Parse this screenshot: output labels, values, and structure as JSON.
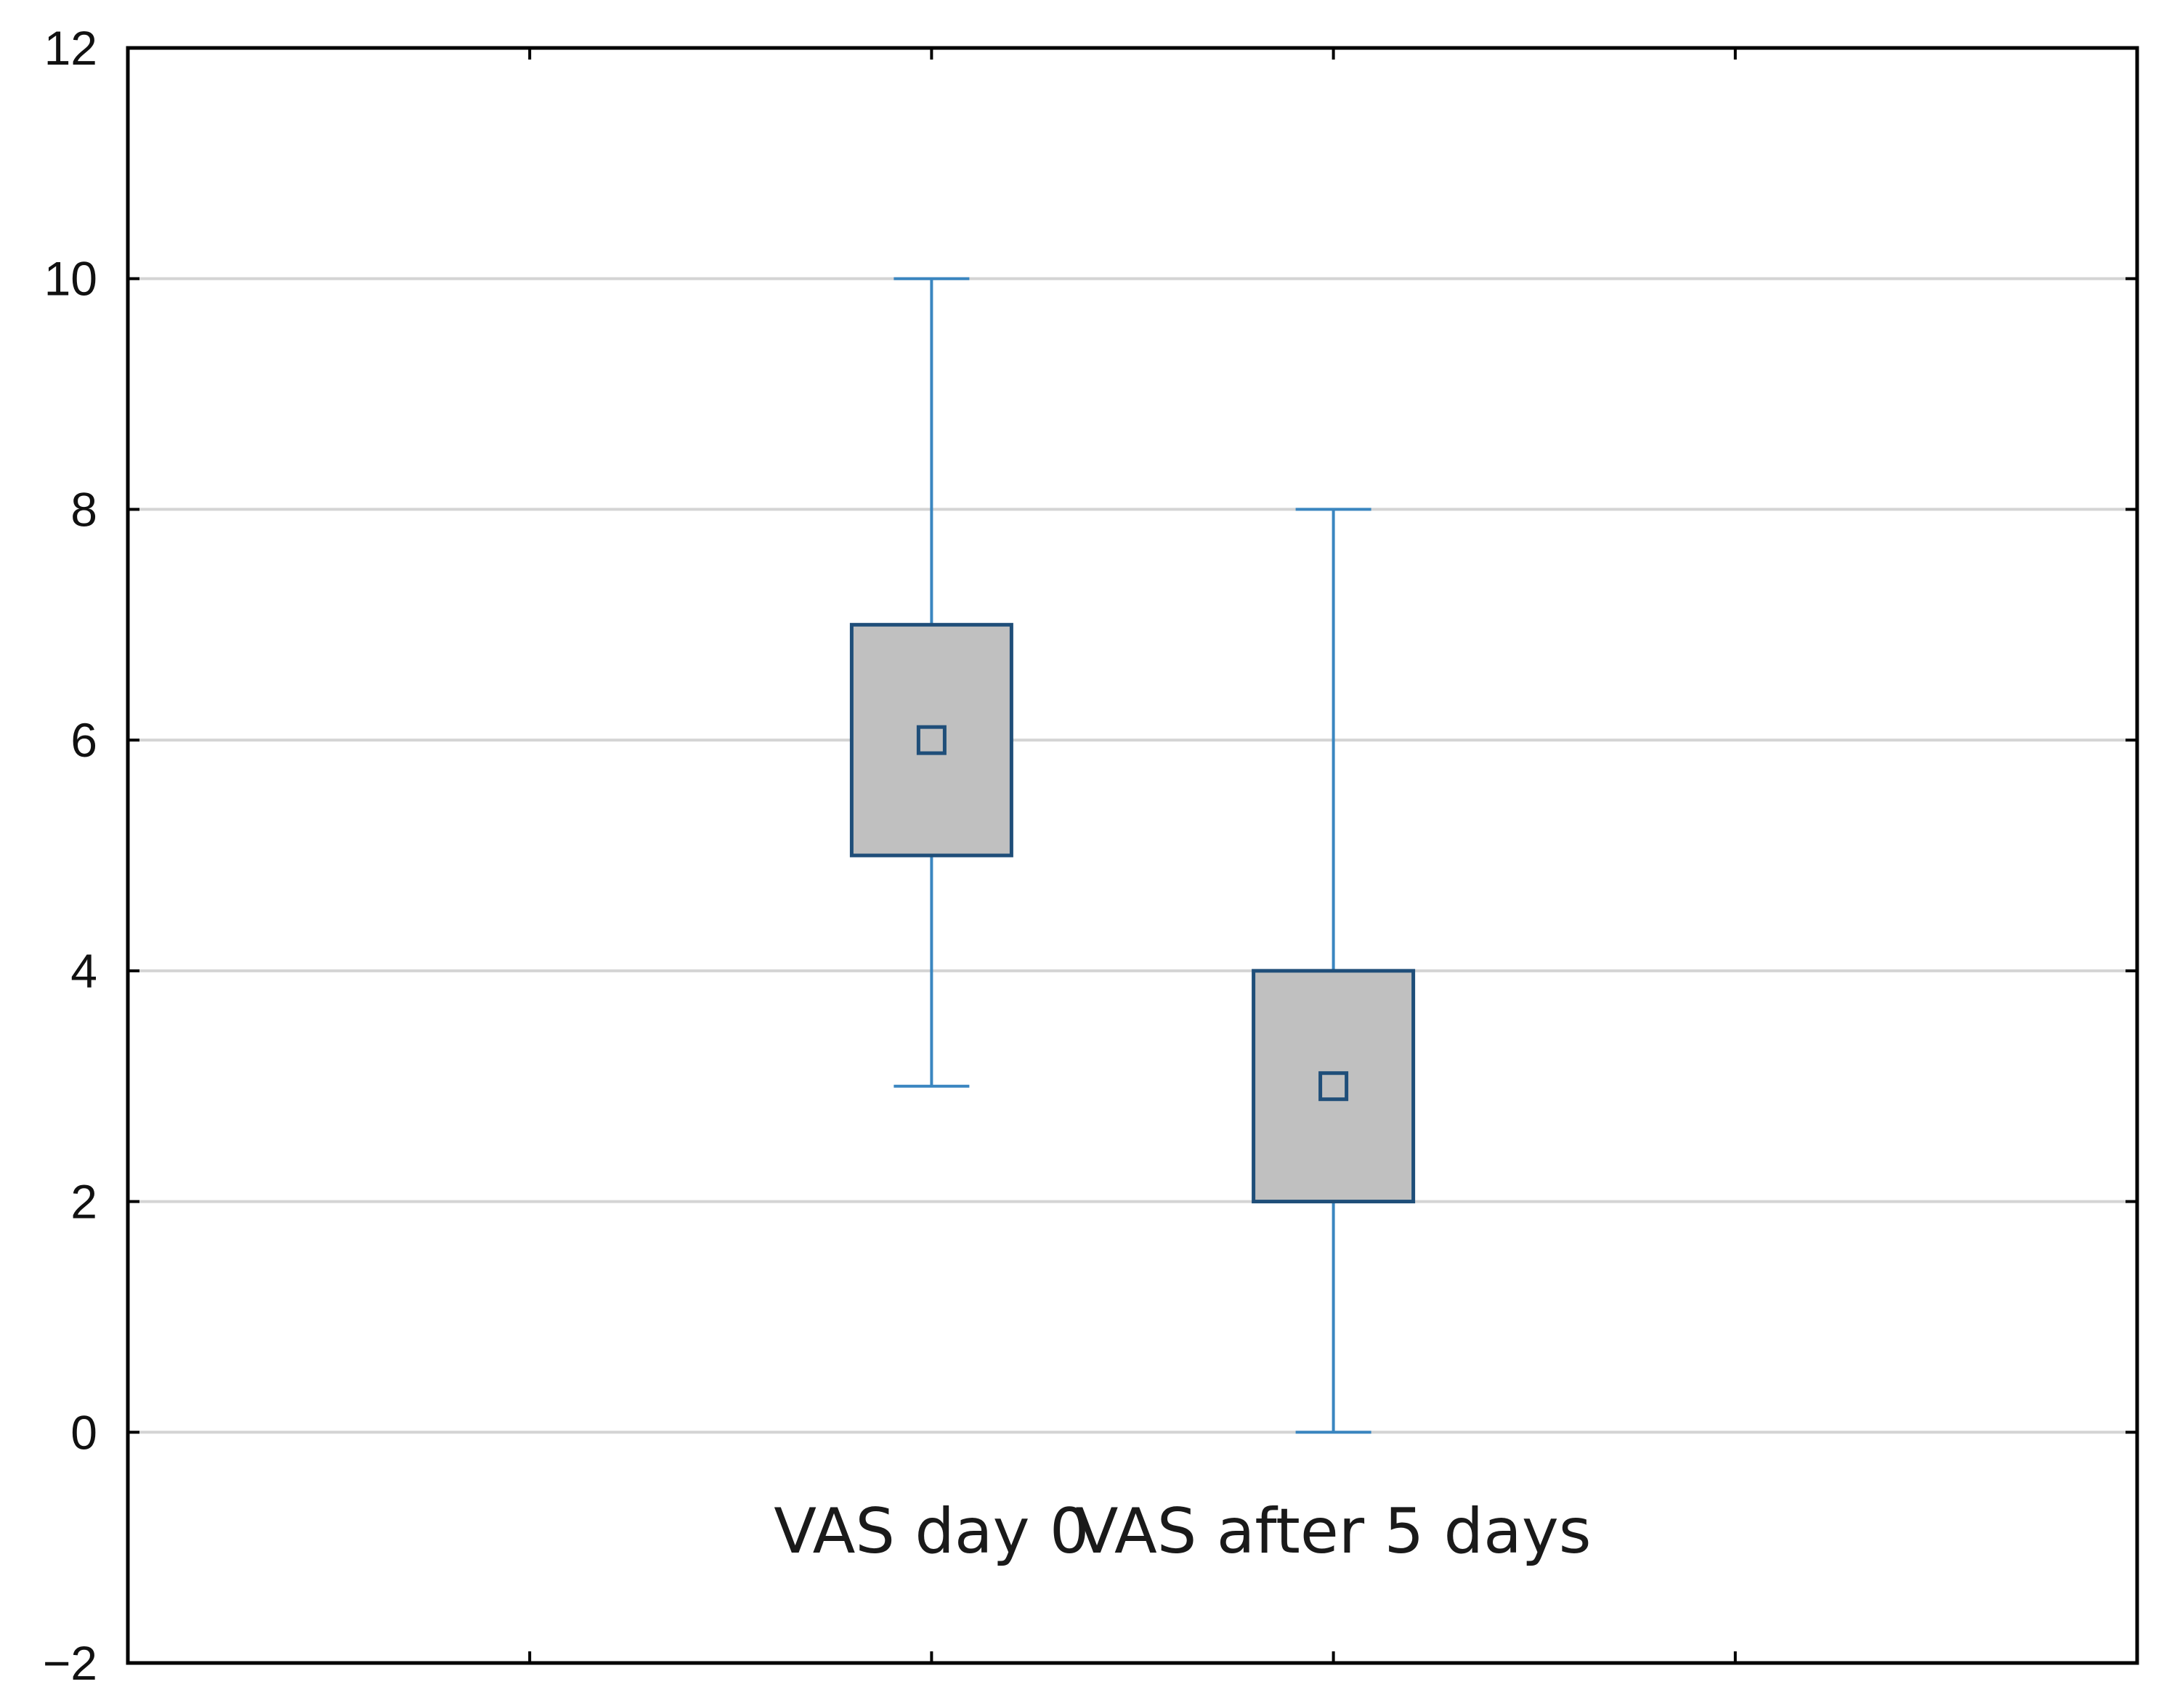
{
  "chart_data": {
    "type": "box",
    "title": "",
    "xlabel": "",
    "ylabel": "",
    "ylim": [
      -2,
      12
    ],
    "yticks": [
      -2,
      0,
      2,
      4,
      6,
      8,
      10,
      12
    ],
    "ytick_labels": [
      "−2",
      "0",
      "2",
      "4",
      "6",
      "8",
      "10",
      "12"
    ],
    "grid": true,
    "categories": [
      "VAS day 0",
      "VAS after 5 days"
    ],
    "series": [
      {
        "name": "VAS day 0",
        "center": 6,
        "box_low": 5,
        "box_high": 7,
        "whisker_low": 3,
        "whisker_high": 10
      },
      {
        "name": "VAS after 5 days",
        "center": 3,
        "box_low": 2,
        "box_high": 4,
        "whisker_low": 0,
        "whisker_high": 8
      }
    ],
    "colors": {
      "box_fill": "#c0c0c0",
      "box_edge": "#1f4e79",
      "whisker": "#3a86c0",
      "gridline": "#d4d4d4",
      "axis": "#000000"
    }
  }
}
